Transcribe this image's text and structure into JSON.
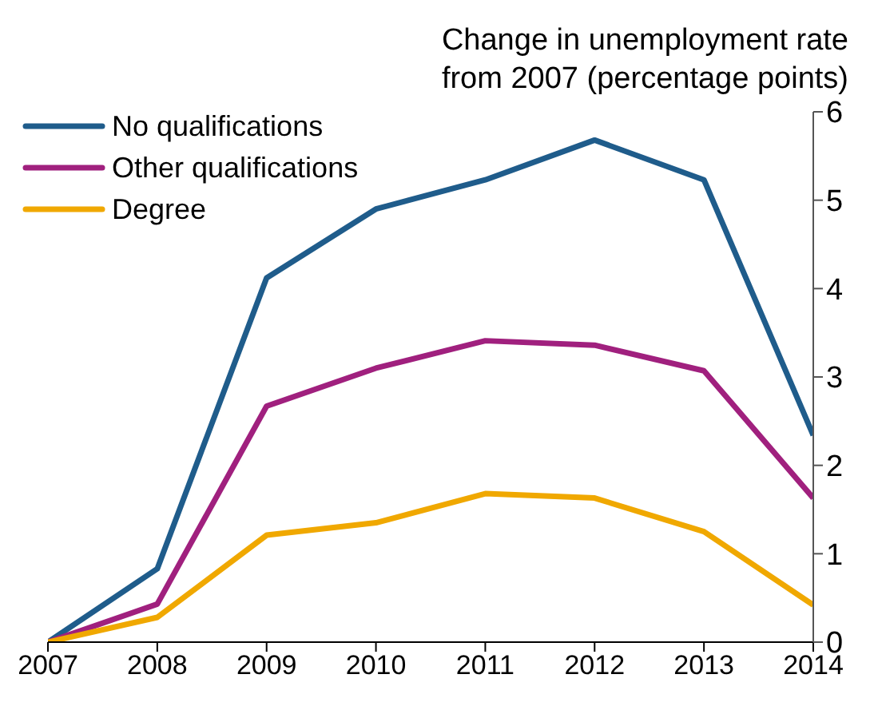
{
  "chart_data": {
    "type": "line",
    "ylabel": "Change in unemployment rate from  2007 (percentage points)",
    "x": [
      2007,
      2008,
      2009,
      2010,
      2011,
      2012,
      2013,
      2014
    ],
    "xlim": [
      2007,
      2014
    ],
    "xticks": [
      2007,
      2008,
      2009,
      2010,
      2011,
      2012,
      2013,
      2014
    ],
    "ylim": [
      0,
      6
    ],
    "yticks": [
      0,
      1,
      2,
      3,
      4,
      5,
      6
    ],
    "series": [
      {
        "name": "No qualifications",
        "color": "#1f5c8b",
        "values": [
          0,
          0.83,
          4.12,
          4.9,
          5.23,
          5.68,
          5.23,
          2.34
        ]
      },
      {
        "name": "Other qualifications",
        "color": "#a0207e",
        "values": [
          0,
          0.43,
          2.67,
          3.1,
          3.41,
          3.36,
          3.07,
          1.63
        ]
      },
      {
        "name": "Degree",
        "color": "#f0a800",
        "values": [
          0,
          0.28,
          1.21,
          1.35,
          1.68,
          1.63,
          1.25,
          0.42
        ]
      }
    ],
    "grid": false,
    "legend": "top left",
    "marker": "none",
    "line_style": "solid"
  }
}
